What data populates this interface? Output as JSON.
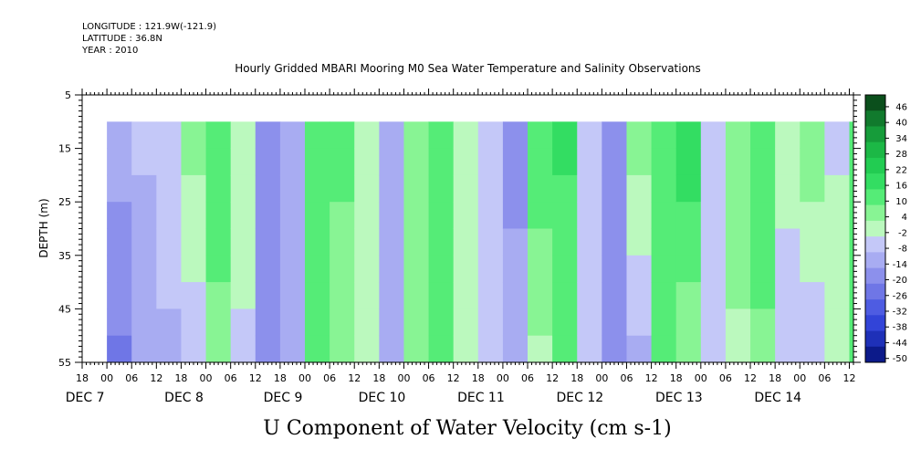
{
  "header": {
    "longitude": "LONGITUDE : 121.9W(-121.9)",
    "latitude": "LATITUDE : 36.8N",
    "year": "YEAR : 2010"
  },
  "chart_data": {
    "type": "heatmap",
    "title": "Hourly Gridded MBARI Mooring M0 Sea Water Temperature and Salinity Observations",
    "xlabel": "U Component of Water Velocity (cm s-1)",
    "ylabel": "DEPTH (m)",
    "y_range": [
      5,
      55
    ],
    "y_inverted": true,
    "y_ticks": [
      5,
      15,
      25,
      35,
      45,
      55
    ],
    "data_depth_range": [
      10,
      55
    ],
    "x_start": "2010-12-06T18:00",
    "x_end": "2010-12-14T13:00",
    "data_x_start": "2010-12-07T00:00",
    "hour_tick_labels": [
      "18",
      "00",
      "06",
      "12",
      "18",
      "00",
      "06",
      "12",
      "18",
      "00",
      "06",
      "12",
      "18",
      "00",
      "06",
      "12",
      "18",
      "00",
      "06",
      "12",
      "18",
      "00",
      "06",
      "12",
      "18",
      "00",
      "06",
      "12",
      "18",
      "00",
      "06",
      "12"
    ],
    "day_labels": [
      "DEC  7",
      "DEC  8",
      "DEC  9",
      "DEC 10",
      "DEC 11",
      "DEC 12",
      "DEC 13",
      "DEC 14"
    ],
    "colorbar": {
      "labels": [
        "46",
        "40",
        "34",
        "28",
        "22",
        "16",
        "10",
        "4",
        "-2",
        "-8",
        "-14",
        "-20",
        "-26",
        "-32",
        "-38",
        "-44",
        "-50"
      ],
      "range": [
        -50,
        52
      ],
      "colors_high_to_low": [
        "#0b4f1c",
        "#117a2d",
        "#169c3a",
        "#1cb846",
        "#22cc52",
        "#33dd62",
        "#55ec77",
        "#88f494",
        "#bbf9be",
        "#c4c8f8",
        "#a8acf2",
        "#8c90ec",
        "#6f76e6",
        "#4e5ce2",
        "#3244d8",
        "#1e30b8",
        "#0c1a8a"
      ]
    },
    "u_velocity_columns": [
      {
        "time": "2010-12-07T00",
        "u_top": -10,
        "u_bottom": -22
      },
      {
        "time": "2010-12-07T06",
        "u_top": -6,
        "u_bottom": -14
      },
      {
        "time": "2010-12-07T12",
        "u_top": -2,
        "u_bottom": -10
      },
      {
        "time": "2010-12-07T18",
        "u_top": 6,
        "u_bottom": -6
      },
      {
        "time": "2010-12-08T00",
        "u_top": 14,
        "u_bottom": 8
      },
      {
        "time": "2010-12-08T06",
        "u_top": 4,
        "u_bottom": -4
      },
      {
        "time": "2010-12-08T12",
        "u_top": -14,
        "u_bottom": -20
      },
      {
        "time": "2010-12-08T18",
        "u_top": -8,
        "u_bottom": -12
      },
      {
        "time": "2010-12-09T00",
        "u_top": 14,
        "u_bottom": 10
      },
      {
        "time": "2010-12-09T06",
        "u_top": 12,
        "u_bottom": 6
      },
      {
        "time": "2010-12-09T12",
        "u_top": 4,
        "u_bottom": -2
      },
      {
        "time": "2010-12-09T18",
        "u_top": -8,
        "u_bottom": -12
      },
      {
        "time": "2010-12-10T00",
        "u_top": 8,
        "u_bottom": 10
      },
      {
        "time": "2010-12-10T06",
        "u_top": 16,
        "u_bottom": 14
      },
      {
        "time": "2010-12-10T12",
        "u_top": 2,
        "u_bottom": 2
      },
      {
        "time": "2010-12-10T18",
        "u_top": -6,
        "u_bottom": -8
      },
      {
        "time": "2010-12-11T00",
        "u_top": -16,
        "u_bottom": -12
      },
      {
        "time": "2010-12-11T06",
        "u_top": 16,
        "u_bottom": 2
      },
      {
        "time": "2010-12-11T12",
        "u_top": 18,
        "u_bottom": 10
      },
      {
        "time": "2010-12-11T18",
        "u_top": -2,
        "u_bottom": -6
      },
      {
        "time": "2010-12-12T00",
        "u_top": -20,
        "u_bottom": -18
      },
      {
        "time": "2010-12-12T06",
        "u_top": 8,
        "u_bottom": -10
      },
      {
        "time": "2010-12-12T12",
        "u_top": 12,
        "u_bottom": 12
      },
      {
        "time": "2010-12-12T18",
        "u_top": 20,
        "u_bottom": 6
      },
      {
        "time": "2010-12-13T00",
        "u_top": -4,
        "u_bottom": -6
      },
      {
        "time": "2010-12-13T06",
        "u_top": 10,
        "u_bottom": 2
      },
      {
        "time": "2010-12-13T12",
        "u_top": 16,
        "u_bottom": 8
      },
      {
        "time": "2010-12-13T18",
        "u_top": 2,
        "u_bottom": -8
      },
      {
        "time": "2010-12-14T00",
        "u_top": 10,
        "u_bottom": -8
      },
      {
        "time": "2010-12-14T06",
        "u_top": -4,
        "u_bottom": 4
      },
      {
        "time": "2010-12-14T12",
        "u_top": 16,
        "u_bottom": 10
      }
    ]
  }
}
